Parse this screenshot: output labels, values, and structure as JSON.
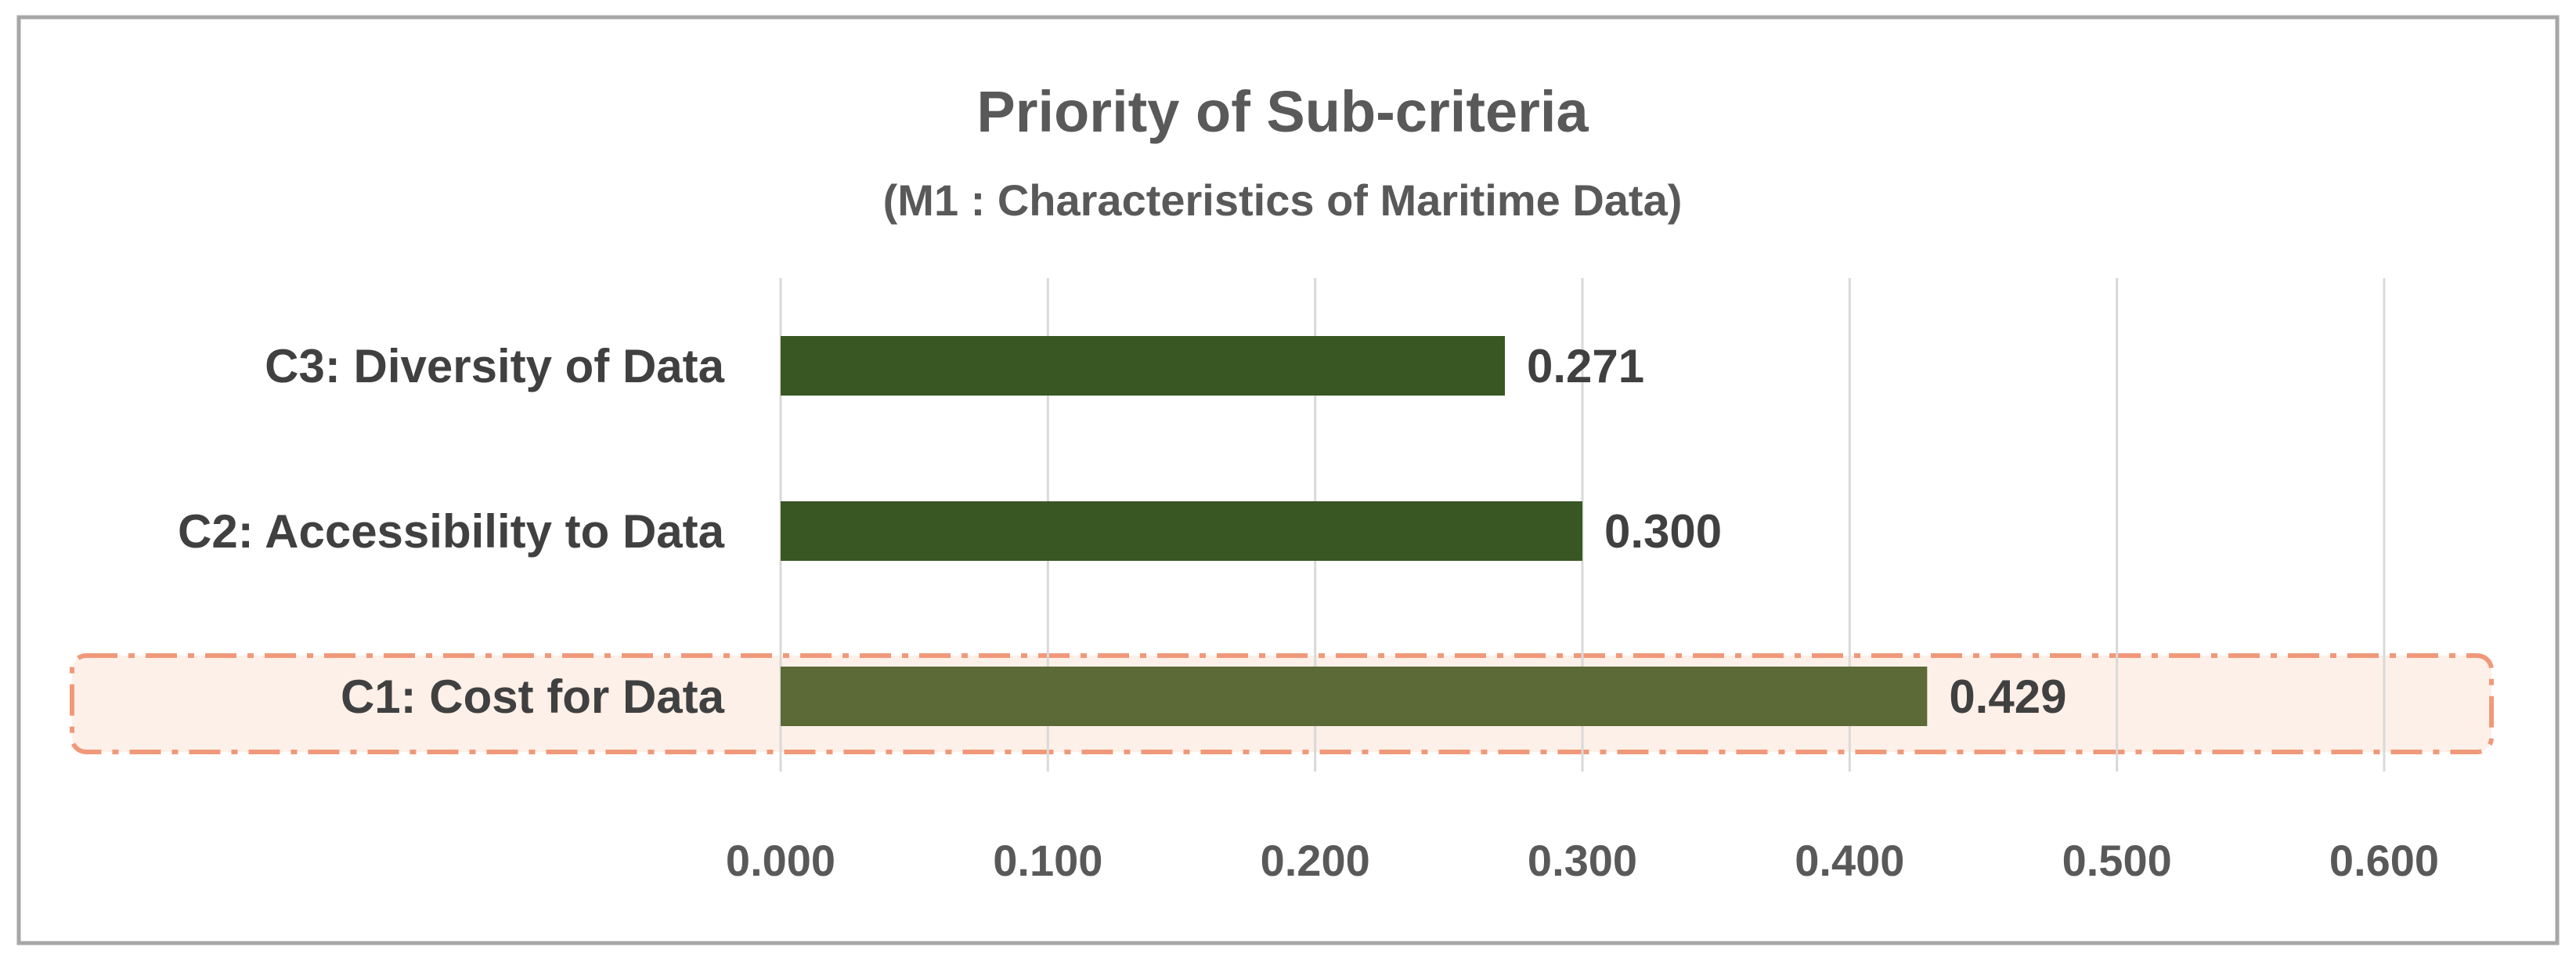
{
  "chart_data": {
    "type": "bar",
    "orientation": "horizontal",
    "title": "Priority of Sub-criteria",
    "subtitle": "(M1 : Characteristics of  Maritime Data)",
    "categories": [
      "C3: Diversity of Data",
      "C2: Accessibility to Data",
      "C1: Cost for Data"
    ],
    "values": [
      0.271,
      0.3,
      0.429
    ],
    "data_labels": [
      "0.271",
      "0.300",
      "0.429"
    ],
    "xlim": [
      0,
      0.6
    ],
    "x_ticks": [
      0.0,
      0.1,
      0.2,
      0.3,
      0.4,
      0.5,
      0.6
    ],
    "x_tick_labels": [
      "0.000",
      "0.100",
      "0.200",
      "0.300",
      "0.400",
      "0.500",
      "0.600"
    ],
    "grid": "vertical",
    "legend": "none",
    "highlighted_category": "C1: Cost for Data",
    "colors": {
      "bar": "#385723",
      "bar_highlight": "#5b6a36",
      "highlight_fill": "#fdf0e8",
      "highlight_border": "#f0997a",
      "grid": "#d9d9d9",
      "frame": "#a6a6a6"
    }
  }
}
